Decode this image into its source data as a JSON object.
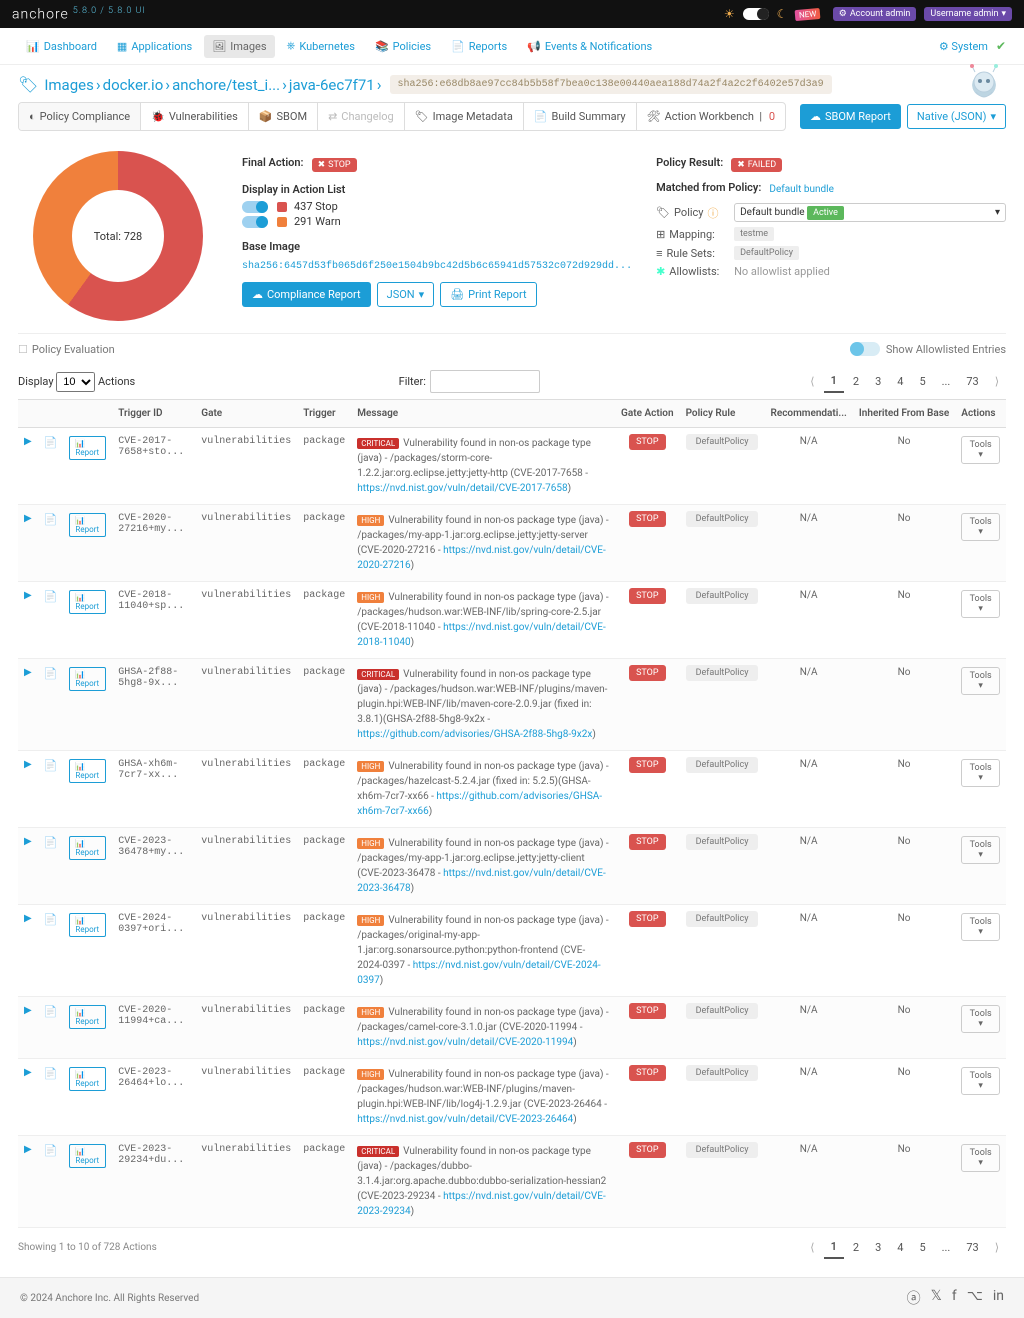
{
  "brand": {
    "name": "anchore",
    "version": "5.8.0 / 5.8.0 UI"
  },
  "top": {
    "account_label": "Account admin",
    "user_label": "Username admin",
    "new": "NEW"
  },
  "nav": {
    "items": [
      {
        "label": "Dashboard",
        "icon": "📊"
      },
      {
        "label": "Applications",
        "icon": "▦"
      },
      {
        "label": "Images",
        "icon": "🖼",
        "active": true
      },
      {
        "label": "Kubernetes",
        "icon": "⎈"
      },
      {
        "label": "Policies",
        "icon": "📚"
      },
      {
        "label": "Reports",
        "icon": "📄"
      },
      {
        "label": "Events & Notifications",
        "icon": "📢"
      }
    ],
    "system": "System"
  },
  "crumbs": {
    "items": [
      "Images",
      "docker.io",
      "anchore/test_i...",
      "java-6ec7f71"
    ],
    "sha": "sha256:e68db8ae97cc84b5b58f7bea0c138e00440aea188d74a2f4a2c2f6402e57d3a9"
  },
  "tabs": {
    "items": [
      {
        "label": "Policy Compliance",
        "icon": "◐",
        "active": true
      },
      {
        "label": "Vulnerabilities",
        "icon": "🐞"
      },
      {
        "label": "SBOM",
        "icon": "📦"
      },
      {
        "label": "Changelog",
        "icon": "⇄",
        "disabled": true
      },
      {
        "label": "Image Metadata",
        "icon": "🏷"
      },
      {
        "label": "Build Summary",
        "icon": "📄"
      },
      {
        "label": "Action Workbench",
        "sub": "0",
        "icon": "🛠"
      }
    ],
    "sbom_btn": "SBOM Report",
    "native_btn": "Native (JSON)"
  },
  "summary": {
    "donut": {
      "total": "Total: 728",
      "stop": 437,
      "warn": 291,
      "colors": {
        "stop": "#d9534f",
        "warn": "#f0803c"
      }
    },
    "final_action": {
      "label": "Final Action:",
      "value": "STOP"
    },
    "display_label": "Display in Action List",
    "legend": [
      {
        "label": "437 Stop"
      },
      {
        "label": "291 Warn"
      }
    ],
    "base_image": {
      "label": "Base Image",
      "link": "sha256:6457d53fb065d6f250e1504b9bc42d5b6c65941d57532c072d929dd..."
    },
    "compliance_btn": "Compliance Report",
    "json_btn": "JSON",
    "print_btn": "Print Report",
    "policy_result": {
      "label": "Policy Result:",
      "value": "FAILED"
    },
    "matched": {
      "label": "Matched from Policy:",
      "value": "Default bundle"
    },
    "policy_row": {
      "label": "Policy",
      "sel_text": "Default bundle",
      "tag": "Active"
    },
    "mapping": {
      "label": "Mapping:",
      "value": "testme"
    },
    "rulesets": {
      "label": "Rule Sets:",
      "value": "DefaultPolicy"
    },
    "allowlists": {
      "label": "Allowlists:",
      "value": "No allowlist applied"
    }
  },
  "eval": {
    "title": "Policy Evaluation",
    "toggle": "Show Allowlisted Entries"
  },
  "table": {
    "display": "Display",
    "display_val": "10",
    "display_suffix": "Actions",
    "filter": "Filter:",
    "pages": [
      "1",
      "2",
      "3",
      "4",
      "5",
      "...",
      "73"
    ],
    "cols": [
      "",
      "",
      "",
      "Trigger ID",
      "Gate",
      "Trigger",
      "Message",
      "Gate Action",
      "Policy Rule",
      "Recommendati...",
      "Inherited From Base",
      "Actions"
    ],
    "report_btn": "Report",
    "tools_btn": "Tools",
    "stop_btn": "STOP",
    "rule_btn": "DefaultPolicy",
    "na": "N/A",
    "no": "No",
    "rows": [
      {
        "id": "CVE-2017-7658+sto...",
        "gate": "vulnerabilities",
        "trigger": "package",
        "sev": "CRITICAL",
        "msg": "Vulnerability found in non-os package type (java) - /packages/storm-core-1.2.2.jar:org.eclipse.jetty:jetty-http (CVE-2017-7658 - ",
        "link": "https://nvd.nist.gov/vuln/detail/CVE-2017-7658",
        ")": ")"
      },
      {
        "id": "CVE-2020-27216+my...",
        "gate": "vulnerabilities",
        "trigger": "package",
        "sev": "HIGH",
        "msg": "Vulnerability found in non-os package type (java) - /packages/my-app-1.jar:org.eclipse.jetty:jetty-server (CVE-2020-27216 - ",
        "link": "https://nvd.nist.gov/vuln/detail/CVE-2020-27216",
        ")": ")"
      },
      {
        "id": "CVE-2018-11040+sp...",
        "gate": "vulnerabilities",
        "trigger": "package",
        "sev": "HIGH",
        "msg": "Vulnerability found in non-os package type (java) - /packages/hudson.war:WEB-INF/lib/spring-core-2.5.jar (CVE-2018-11040 - ",
        "link": "https://nvd.nist.gov/vuln/detail/CVE-2018-11040",
        ")": ")"
      },
      {
        "id": "GHSA-2f88-5hg8-9x...",
        "gate": "vulnerabilities",
        "trigger": "package",
        "sev": "CRITICAL",
        "msg": "Vulnerability found in non-os package type (java) - /packages/hudson.war:WEB-INF/plugins/maven-plugin.hpi:WEB-INF/lib/maven-core-2.0.9.jar (fixed in: 3.8.1)(GHSA-2f88-5hg8-9x2x - ",
        "link": "https://github.com/advisories/GHSA-2f88-5hg8-9x2x",
        ")": ")"
      },
      {
        "id": "GHSA-xh6m-7cr7-xx...",
        "gate": "vulnerabilities",
        "trigger": "package",
        "sev": "HIGH",
        "msg": "Vulnerability found in non-os package type (java) - /packages/hazelcast-5.2.4.jar (fixed in: 5.2.5)(GHSA-xh6m-7cr7-xx66 - ",
        "link": "https://github.com/advisories/GHSA-xh6m-7cr7-xx66",
        ")": ")"
      },
      {
        "id": "CVE-2023-36478+my...",
        "gate": "vulnerabilities",
        "trigger": "package",
        "sev": "HIGH",
        "msg": "Vulnerability found in non-os package type (java) - /packages/my-app-1.jar:org.eclipse.jetty:jetty-client (CVE-2023-36478 - ",
        "link": "https://nvd.nist.gov/vuln/detail/CVE-2023-36478",
        ")": ")"
      },
      {
        "id": "CVE-2024-0397+ori...",
        "gate": "vulnerabilities",
        "trigger": "package",
        "sev": "HIGH",
        "msg": "Vulnerability found in non-os package type (java) - /packages/original-my-app-1.jar:org.sonarsource.python:python-frontend (CVE-2024-0397 - ",
        "link": "https://nvd.nist.gov/vuln/detail/CVE-2024-0397",
        ")": ")"
      },
      {
        "id": "CVE-2020-11994+ca...",
        "gate": "vulnerabilities",
        "trigger": "package",
        "sev": "HIGH",
        "msg": "Vulnerability found in non-os package type (java) - /packages/camel-core-3.1.0.jar (CVE-2020-11994 - ",
        "link": "https://nvd.nist.gov/vuln/detail/CVE-2020-11994",
        ")": ")"
      },
      {
        "id": "CVE-2023-26464+lo...",
        "gate": "vulnerabilities",
        "trigger": "package",
        "sev": "HIGH",
        "msg": "Vulnerability found in non-os package type (java) - /packages/hudson.war:WEB-INF/plugins/maven-plugin.hpi:WEB-INF/lib/log4j-1.2.9.jar (CVE-2023-26464 - ",
        "link": "https://nvd.nist.gov/vuln/detail/CVE-2023-26464",
        ")": ")"
      },
      {
        "id": "CVE-2023-29234+du...",
        "gate": "vulnerabilities",
        "trigger": "package",
        "sev": "CRITICAL",
        "msg": "Vulnerability found in non-os package type (java) - /packages/dubbo-3.1.4.jar:org.apache.dubbo:dubbo-serialization-hessian2 (CVE-2023-29234 - ",
        "link": "https://nvd.nist.gov/vuln/detail/CVE-2023-29234",
        ")": ")"
      }
    ],
    "showing": "Showing 1 to 10 of 728 Actions"
  },
  "footer": {
    "copy": "© 2024 Anchore Inc. All Rights Reserved"
  }
}
